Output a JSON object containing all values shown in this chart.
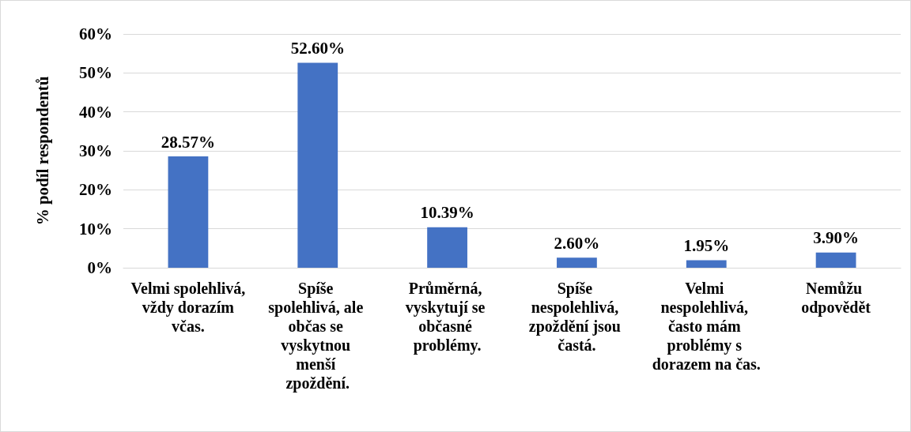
{
  "chart_data": {
    "type": "bar",
    "ylabel": "% podíl respondentů",
    "categories": [
      "Velmi spolehlivá, vždy dorazím včas.",
      "Spíše spolehlivá, ale občas se vyskytnou menší zpoždění.",
      "Průměrná, vyskytují se občasné problémy.",
      "Spíše nespolehlivá, zpoždění jsou častá.",
      "Velmi nespolehlivá, často mám problémy s dorazem na čas.",
      "Nemůžu odpovědět"
    ],
    "values": [
      28.57,
      52.6,
      10.39,
      2.6,
      1.95,
      3.9
    ],
    "value_labels": [
      "28.57%",
      "52.60%",
      "10.39%",
      "2.60%",
      "1.95%",
      "3.90%"
    ],
    "color": "#4472c4",
    "ylim": [
      0,
      60
    ],
    "yticks": [
      {
        "value": 0,
        "label": "0%"
      },
      {
        "value": 10,
        "label": "10%"
      },
      {
        "value": 20,
        "label": "20%"
      },
      {
        "value": 30,
        "label": "30%"
      },
      {
        "value": 40,
        "label": "40%"
      },
      {
        "value": 50,
        "label": "50%"
      },
      {
        "value": 60,
        "label": "60%"
      }
    ],
    "grid": true
  }
}
